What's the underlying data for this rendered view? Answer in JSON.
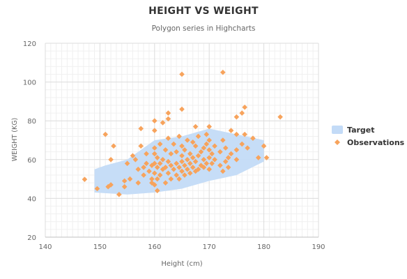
{
  "chart_data": {
    "type": "scatter",
    "title": "HEIGHT VS WEIGHT",
    "subtitle": "Polygon series in Highcharts",
    "xlabel": "Height (cm)",
    "ylabel": "WEIGHT (KG)",
    "xlim": [
      140,
      190
    ],
    "ylim": [
      20,
      120
    ],
    "xticks": [
      140,
      150,
      160,
      170,
      180,
      190
    ],
    "yticks": [
      20,
      40,
      60,
      80,
      100,
      120
    ],
    "grid": true,
    "legend_position": "right",
    "series": [
      {
        "name": "Target",
        "kind": "polygon",
        "color": "#c3dbf7",
        "points": [
          [
            149,
            55
          ],
          [
            151,
            57
          ],
          [
            155,
            60
          ],
          [
            160,
            70
          ],
          [
            165,
            72
          ],
          [
            170,
            76
          ],
          [
            175,
            73
          ],
          [
            180,
            70
          ],
          [
            180,
            59
          ],
          [
            175,
            52
          ],
          [
            170,
            49
          ],
          [
            165,
            45
          ],
          [
            160,
            43
          ],
          [
            155,
            42
          ],
          [
            149,
            43
          ]
        ]
      },
      {
        "name": "Observations",
        "kind": "scatter",
        "color": "#f7a35c",
        "points": [
          [
            147.2,
            49.8
          ],
          [
            149.5,
            45
          ],
          [
            151,
            73
          ],
          [
            151.5,
            46
          ],
          [
            152,
            60
          ],
          [
            152.5,
            67
          ],
          [
            152,
            47
          ],
          [
            153.5,
            42
          ],
          [
            154.5,
            46
          ],
          [
            154.5,
            49
          ],
          [
            155,
            58
          ],
          [
            155.5,
            50
          ],
          [
            156,
            62
          ],
          [
            156.5,
            60
          ],
          [
            157,
            48
          ],
          [
            157,
            55
          ],
          [
            157.5,
            67
          ],
          [
            157.5,
            76
          ],
          [
            158,
            56
          ],
          [
            158,
            52
          ],
          [
            158.5,
            58
          ],
          [
            158.5,
            63
          ],
          [
            159,
            54
          ],
          [
            159.5,
            48
          ],
          [
            159.5,
            50
          ],
          [
            159.5,
            57
          ],
          [
            160,
            47
          ],
          [
            160,
            53
          ],
          [
            160,
            58
          ],
          [
            160,
            63
          ],
          [
            160,
            66
          ],
          [
            160,
            75
          ],
          [
            160,
            80
          ],
          [
            160.5,
            44
          ],
          [
            160.5,
            50
          ],
          [
            160.5,
            56
          ],
          [
            160.5,
            61
          ],
          [
            161,
            52
          ],
          [
            161,
            58
          ],
          [
            161,
            68
          ],
          [
            161.5,
            55
          ],
          [
            161.5,
            60
          ],
          [
            161.5,
            79
          ],
          [
            162,
            48
          ],
          [
            162,
            56
          ],
          [
            162,
            65
          ],
          [
            162.5,
            53
          ],
          [
            162.5,
            59
          ],
          [
            162.5,
            71
          ],
          [
            162.5,
            81
          ],
          [
            162.5,
            84
          ],
          [
            163,
            50
          ],
          [
            163,
            57
          ],
          [
            163,
            63
          ],
          [
            163.5,
            55
          ],
          [
            163.5,
            68
          ],
          [
            164,
            52
          ],
          [
            164,
            58
          ],
          [
            164,
            64
          ],
          [
            164.5,
            50
          ],
          [
            164.5,
            56
          ],
          [
            164.5,
            72
          ],
          [
            165,
            54
          ],
          [
            165,
            59
          ],
          [
            165,
            62
          ],
          [
            165,
            67
          ],
          [
            165,
            86
          ],
          [
            165,
            104
          ],
          [
            165.5,
            52
          ],
          [
            165.5,
            57
          ],
          [
            165.5,
            65
          ],
          [
            166,
            55
          ],
          [
            166,
            60
          ],
          [
            166,
            70
          ],
          [
            166.5,
            53
          ],
          [
            166.5,
            58
          ],
          [
            166.5,
            63
          ],
          [
            167,
            56
          ],
          [
            167,
            61
          ],
          [
            167,
            69
          ],
          [
            167.5,
            54
          ],
          [
            167.5,
            59
          ],
          [
            167.5,
            67
          ],
          [
            167.5,
            77
          ],
          [
            168,
            55
          ],
          [
            168,
            62
          ],
          [
            168,
            72
          ],
          [
            168.5,
            57
          ],
          [
            168.5,
            64
          ],
          [
            169,
            56
          ],
          [
            169,
            60
          ],
          [
            169,
            66
          ],
          [
            169.5,
            58
          ],
          [
            169.5,
            68
          ],
          [
            169.5,
            73
          ],
          [
            170,
            55
          ],
          [
            170,
            61
          ],
          [
            170,
            65
          ],
          [
            170,
            70
          ],
          [
            170,
            77
          ],
          [
            170.5,
            58
          ],
          [
            170.5,
            63
          ],
          [
            171,
            60
          ],
          [
            171,
            67
          ],
          [
            172,
            57
          ],
          [
            172,
            64
          ],
          [
            172.5,
            54
          ],
          [
            172.5,
            70
          ],
          [
            172.5,
            105
          ],
          [
            173,
            59
          ],
          [
            173,
            66
          ],
          [
            173.5,
            56
          ],
          [
            173.5,
            61
          ],
          [
            174,
            63
          ],
          [
            174,
            75
          ],
          [
            175,
            60
          ],
          [
            175,
            65
          ],
          [
            175,
            73
          ],
          [
            175,
            82
          ],
          [
            176,
            68
          ],
          [
            176,
            84
          ],
          [
            176.5,
            87
          ],
          [
            176.5,
            73
          ],
          [
            177,
            66
          ],
          [
            178,
            71
          ],
          [
            179,
            61
          ],
          [
            180,
            67
          ],
          [
            180.5,
            61
          ],
          [
            183,
            82
          ]
        ]
      }
    ]
  }
}
